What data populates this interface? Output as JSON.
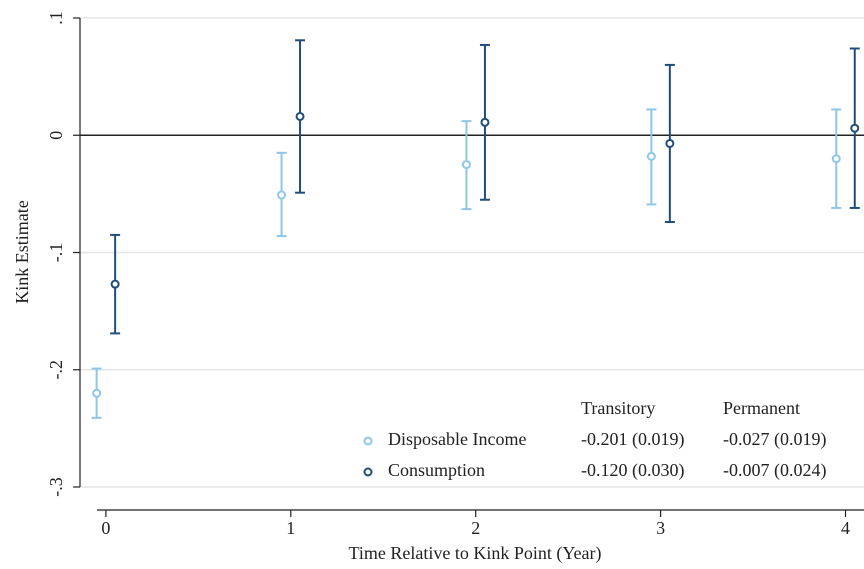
{
  "chart_data": {
    "type": "errorbar",
    "x_label": "Time Relative to Kink Point (Year)",
    "y_label": "Kink Estimate",
    "x": [
      0,
      1,
      2,
      3,
      4
    ],
    "xlim": [
      -0.14,
      4.1
    ],
    "xticks": [
      0,
      1,
      2,
      3,
      4
    ],
    "ylim": [
      -0.3,
      0.1
    ],
    "yticks": [
      {
        "value": -0.3,
        "label": "-.3"
      },
      {
        "value": -0.2,
        "label": "-.2"
      },
      {
        "value": -0.1,
        "label": "-.1"
      },
      0,
      {
        "value": 0.1,
        "label": ".1"
      }
    ],
    "grid": true,
    "reference_line": 0,
    "series": [
      {
        "name": "Disposable Income",
        "color": "#8ec6e8",
        "values": [
          -0.22,
          -0.051,
          -0.025,
          -0.018,
          -0.02
        ],
        "lower": [
          -0.241,
          -0.086,
          -0.063,
          -0.059,
          -0.062
        ],
        "upper": [
          -0.199,
          -0.015,
          0.012,
          0.022,
          0.022
        ]
      },
      {
        "name": "Consumption",
        "color": "#1f4e79",
        "values": [
          -0.127,
          0.016,
          0.011,
          -0.007,
          0.006
        ],
        "lower": [
          -0.169,
          -0.049,
          -0.055,
          -0.074,
          -0.062
        ],
        "upper": [
          -0.085,
          0.081,
          0.077,
          0.06,
          0.074
        ]
      }
    ],
    "legend_table": {
      "columns": [
        "Transitory",
        "Permanent"
      ],
      "rows": [
        [
          "-0.201 (0.019)",
          "-0.027 (0.019)"
        ],
        [
          "-0.120 (0.030)",
          "-0.007 (0.024)"
        ]
      ]
    }
  }
}
